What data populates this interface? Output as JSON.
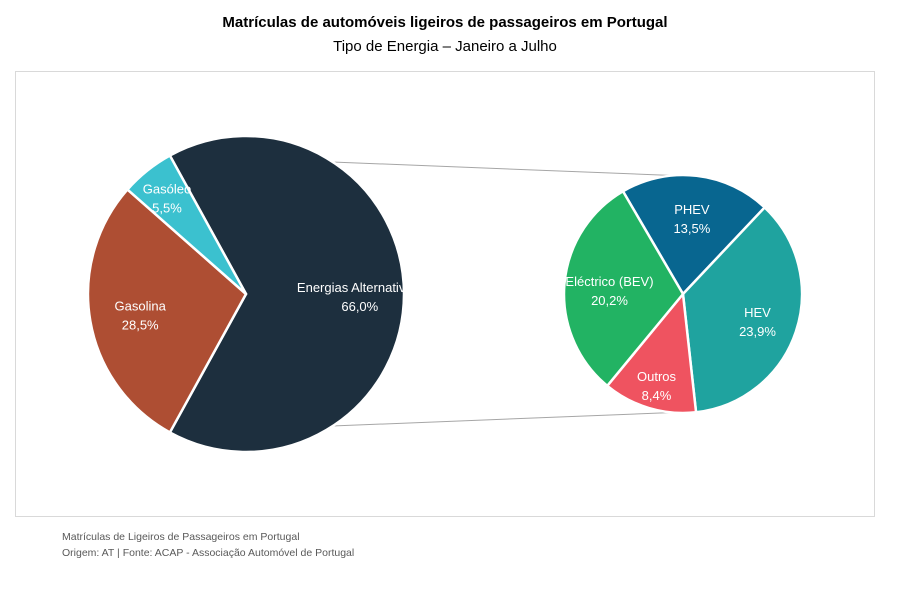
{
  "title": "Matrículas de automóveis ligeiros de passageiros em Portugal",
  "subtitle": "Tipo de Energia – Janeiro a Julho",
  "footer": {
    "line1": "Matrículas de Ligeiros de Passageiros em Portugal",
    "line2": "Origem: AT | Fonte: ACAP - Associação Automóvel de Portugal"
  },
  "chart_data": [
    {
      "type": "pie",
      "slices": [
        {
          "label": "Energias Alternativas;",
          "value": 66.0,
          "value_text": "66,0%",
          "color": "#1d2f3e"
        },
        {
          "label": "Gasolina",
          "value": 28.5,
          "value_text": "28,5%",
          "color": "#ae4e33"
        },
        {
          "label": "Gasóleo",
          "value": 5.5,
          "value_text": "5,5%",
          "color": "#3bc1cf"
        }
      ]
    },
    {
      "type": "pie",
      "slices": [
        {
          "label": "PHEV",
          "value": 13.5,
          "value_text": "13,5%",
          "color": "#086690"
        },
        {
          "label": "HEV",
          "value": 23.9,
          "value_text": "23,9%",
          "color": "#1fa39f"
        },
        {
          "label": "Outros",
          "value": 8.4,
          "value_text": "8,4%",
          "color": "#ef5360"
        },
        {
          "label": "Eléctrico (BEV)",
          "value": 20.2,
          "value_text": "20,2%",
          "color": "#22b363"
        }
      ]
    }
  ]
}
